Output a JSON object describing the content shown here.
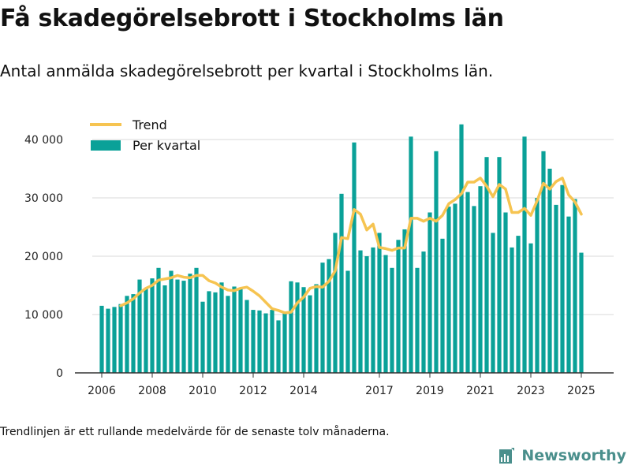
{
  "title": "Få skadegörelsebrott i Stockholms län",
  "subtitle": "Antal anmälda skadegörelsebrott per kvartal i Stockholms län.",
  "footnote": "Trendlinjen är ett rullande medelvärde för de senaste tolv månaderna.",
  "brand": {
    "name": "Newsworthy",
    "icon": "newsworthy-logo-icon",
    "color": "#4a8f8c"
  },
  "colors": {
    "bar": "#0aa198",
    "trend": "#f6c451",
    "grid": "#d9d9d9",
    "axis": "#333333"
  },
  "chart_data": {
    "type": "bar",
    "title": "",
    "xlabel": "",
    "ylabel": "",
    "ylim": [
      0,
      45000
    ],
    "yticks": [
      0,
      10000,
      20000,
      30000,
      40000
    ],
    "ytick_labels": [
      "0",
      "10 000",
      "20 000",
      "30 000",
      "40 000"
    ],
    "xtick_labels": [
      "2006",
      "2008",
      "2010",
      "2012",
      "2014",
      "2017",
      "2019",
      "2021",
      "2023",
      "2025"
    ],
    "xtick_indices": [
      0,
      8,
      16,
      24,
      32,
      44,
      52,
      60,
      68,
      76
    ],
    "grid": true,
    "legend": {
      "placement": "top-left",
      "entries": [
        "Trend",
        "Per kvartal"
      ]
    },
    "series": [
      {
        "name": "Per kvartal",
        "type": "bar",
        "values": [
          11500,
          11000,
          11300,
          11800,
          13200,
          13500,
          16000,
          14500,
          16200,
          18000,
          15000,
          17500,
          16000,
          15800,
          17000,
          18000,
          12200,
          14000,
          13800,
          15500,
          13200,
          14800,
          14500,
          12500,
          10800,
          10700,
          10200,
          10800,
          9000,
          10500,
          15700,
          15500,
          14700,
          13300,
          15200,
          18900,
          19500,
          24000,
          30700,
          17500,
          39500,
          21000,
          20000,
          21500,
          24000,
          20200,
          18000,
          22800,
          24600,
          40500,
          18000,
          20800,
          27500,
          38000,
          23000,
          28500,
          29000,
          42600,
          31000,
          28600,
          32000,
          37000,
          24000,
          37000,
          27500,
          21500,
          23500,
          40500,
          22200,
          30000,
          38000,
          35000,
          28800,
          32200,
          26800,
          29800,
          20600
        ]
      },
      {
        "name": "Trend",
        "type": "line",
        "start_index": 3,
        "values": [
          11500,
          12000,
          12700,
          13700,
          14500,
          15000,
          15900,
          16100,
          16300,
          16700,
          16400,
          16300,
          16700,
          16700,
          15800,
          15400,
          14700,
          14200,
          14100,
          14500,
          14700,
          14000,
          13200,
          12100,
          11000,
          10700,
          10300,
          10400,
          12000,
          13000,
          14500,
          14800,
          14700,
          15700,
          17500,
          23200,
          23000,
          28000,
          27200,
          24500,
          25500,
          21500,
          21300,
          21000,
          21400,
          21400,
          26500,
          26500,
          26000,
          26500,
          26000,
          27000,
          29000,
          29700,
          30700,
          32700,
          32700,
          33400,
          32000,
          30200,
          32300,
          31500,
          27500,
          27500,
          28200,
          27000,
          29500,
          32500,
          31500,
          32800,
          33400,
          30500,
          29300,
          27200
        ]
      }
    ]
  }
}
